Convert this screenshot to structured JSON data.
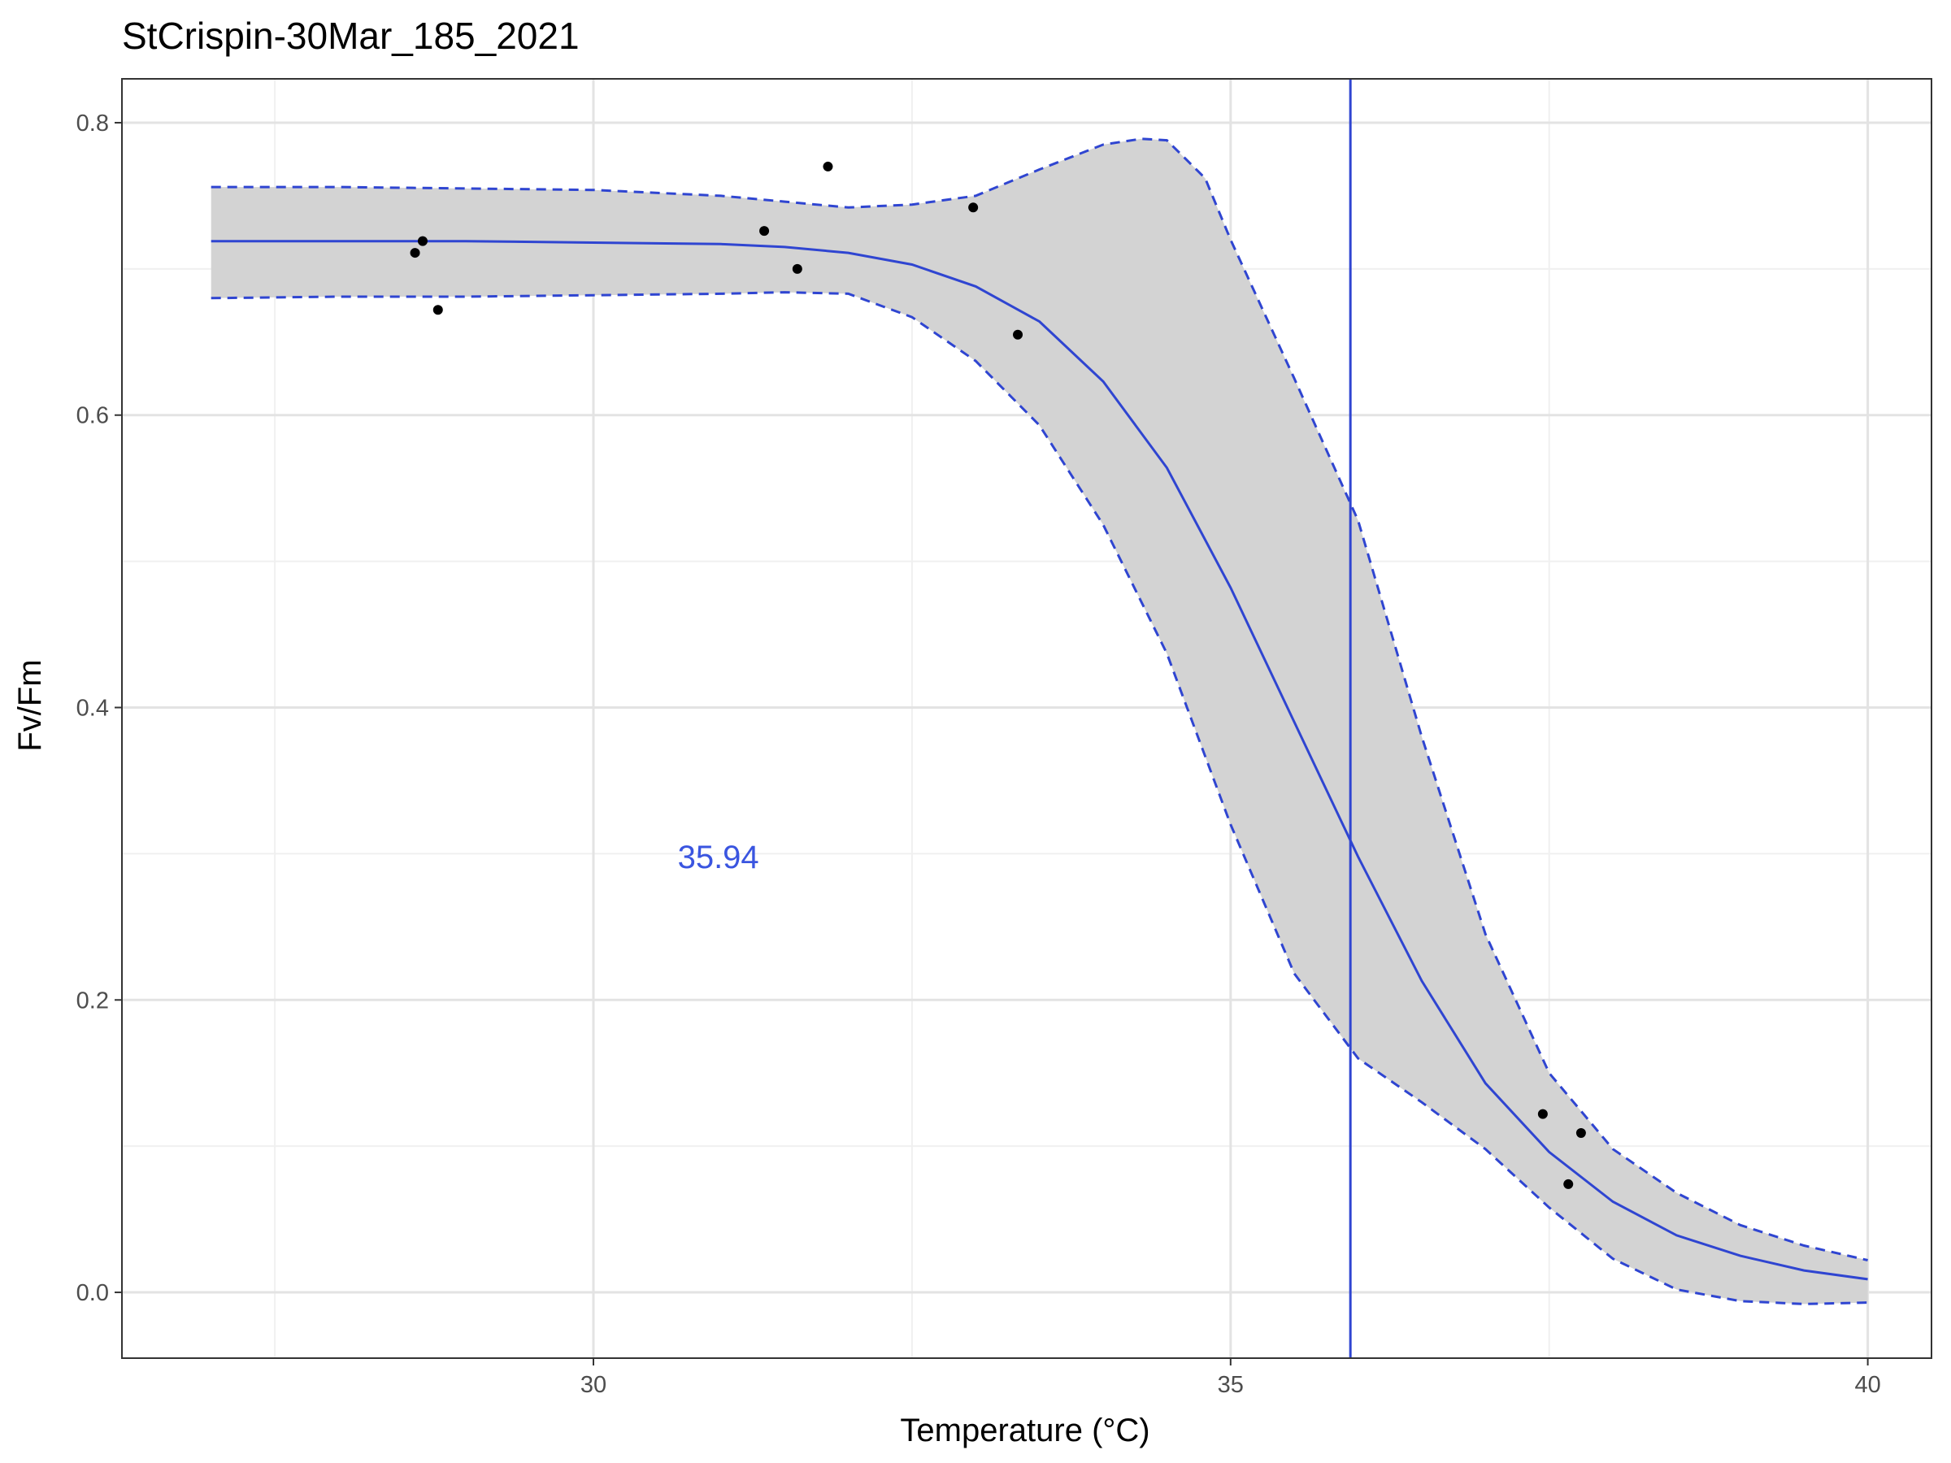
{
  "chart_data": {
    "type": "line",
    "title": "StCrispin-30Mar_185_2021",
    "xlabel": "Temperature (°C)",
    "ylabel": "Fv/Fm",
    "xlim": [
      26.3,
      40.5
    ],
    "ylim": [
      -0.045,
      0.83
    ],
    "x_ticks": [
      30,
      35,
      40
    ],
    "x_tick_labels": [
      "30",
      "35",
      "40"
    ],
    "y_ticks": [
      0.0,
      0.2,
      0.4,
      0.6,
      0.8
    ],
    "y_tick_labels": [
      "0.0",
      "0.2",
      "0.4",
      "0.6",
      "0.8"
    ],
    "grid": true,
    "colors": {
      "fit": "#2f45d1",
      "ribbon": "#d3d3d3",
      "points": "#000000",
      "grid_major": "#e3e3e3",
      "grid_minor": "#f0f0f0",
      "annotation": "#3a55e0"
    },
    "points": [
      {
        "x": 28.6,
        "y": 0.711
      },
      {
        "x": 28.66,
        "y": 0.719
      },
      {
        "x": 28.78,
        "y": 0.672
      },
      {
        "x": 31.34,
        "y": 0.726
      },
      {
        "x": 31.6,
        "y": 0.7
      },
      {
        "x": 31.84,
        "y": 0.77
      },
      {
        "x": 32.98,
        "y": 0.742
      },
      {
        "x": 33.33,
        "y": 0.655
      },
      {
        "x": 37.45,
        "y": 0.122
      },
      {
        "x": 37.65,
        "y": 0.074
      },
      {
        "x": 37.75,
        "y": 0.109
      }
    ],
    "fit": {
      "x": [
        27.0,
        28.0,
        29.0,
        30.0,
        31.0,
        31.5,
        32.0,
        32.5,
        33.0,
        33.5,
        34.0,
        34.5,
        35.0,
        35.5,
        36.0,
        36.5,
        37.0,
        37.5,
        38.0,
        38.5,
        39.0,
        39.5,
        40.0
      ],
      "y": [
        0.719,
        0.719,
        0.719,
        0.718,
        0.717,
        0.715,
        0.711,
        0.703,
        0.688,
        0.664,
        0.623,
        0.564,
        0.482,
        0.39,
        0.298,
        0.213,
        0.143,
        0.096,
        0.062,
        0.039,
        0.025,
        0.015,
        0.009
      ]
    },
    "ribbon_upper": {
      "x": [
        27.0,
        28.0,
        29.0,
        30.0,
        31.0,
        31.5,
        32.0,
        32.5,
        33.0,
        33.5,
        34.0,
        34.3,
        34.5,
        34.8,
        35.0,
        35.5,
        36.0,
        36.5,
        37.0,
        37.5,
        38.0,
        38.5,
        39.0,
        39.5,
        40.0
      ],
      "y": [
        0.756,
        0.756,
        0.755,
        0.754,
        0.75,
        0.746,
        0.742,
        0.744,
        0.75,
        0.768,
        0.785,
        0.789,
        0.788,
        0.762,
        0.72,
        0.625,
        0.528,
        0.38,
        0.245,
        0.15,
        0.098,
        0.068,
        0.046,
        0.032,
        0.022
      ]
    },
    "ribbon_lower": {
      "x": [
        27.0,
        28.0,
        29.0,
        30.0,
        31.0,
        31.5,
        32.0,
        32.5,
        33.0,
        33.5,
        34.0,
        34.5,
        35.0,
        35.5,
        36.0,
        36.5,
        37.0,
        37.5,
        38.0,
        38.5,
        39.0,
        39.5,
        40.0
      ],
      "y": [
        0.68,
        0.681,
        0.681,
        0.682,
        0.683,
        0.684,
        0.683,
        0.667,
        0.637,
        0.593,
        0.525,
        0.437,
        0.32,
        0.218,
        0.16,
        0.13,
        0.098,
        0.058,
        0.023,
        0.002,
        -0.006,
        -0.008,
        -0.007
      ]
    },
    "vline_x": 35.94,
    "annotation": {
      "text": "35.94",
      "x": 30.98,
      "y": 0.298
    }
  }
}
